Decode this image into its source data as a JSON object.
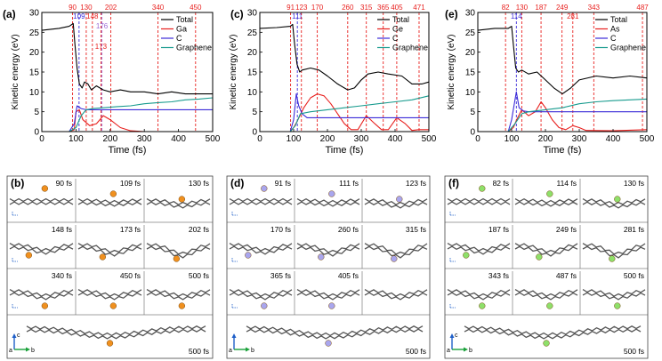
{
  "colors": {
    "total": "#000000",
    "atom": "#e8201e",
    "carbon": "#3b2bd8",
    "graphene": "#179b8e",
    "vline_red": "#e8201e",
    "vline_blue": "#3b2bd8",
    "vline_purple": "#9b6bd6",
    "ga_atom": "#f0901e",
    "ge_atom": "#a9a6ee",
    "as_atom": "#8ee06a",
    "lattice": "#555555",
    "axis_c": "#1e5fc8",
    "axis_b": "#1aa13a"
  },
  "chart_data": [
    {
      "type": "line",
      "panel_label": "(a)",
      "xlabel": "Time (fs)",
      "ylabel": "Kinetic energy (eV)",
      "xlim": [
        0,
        500
      ],
      "ylim": [
        0,
        30
      ],
      "xticks": [
        0,
        100,
        200,
        300,
        400,
        500
      ],
      "yticks": [
        0,
        5,
        10,
        15,
        20,
        25,
        30
      ],
      "legend_position": "top-right",
      "series": [
        {
          "name": "Total",
          "color_key": "total",
          "x": [
            0,
            50,
            80,
            92,
            97,
            103,
            110,
            118,
            125,
            135,
            145,
            160,
            180,
            200,
            230,
            260,
            300,
            340,
            380,
            420,
            460,
            500
          ],
          "y": [
            25.5,
            26,
            26.5,
            27.2,
            22,
            16,
            12,
            11,
            12.5,
            12,
            10.5,
            11.5,
            10.5,
            10,
            10.5,
            10,
            10,
            9.5,
            10,
            9.5,
            9.5,
            9.5
          ]
        },
        {
          "name": "Ga",
          "color_key": "atom",
          "x": [
            0,
            80,
            95,
            100,
            110,
            120,
            140,
            160,
            180,
            200,
            230,
            260,
            300,
            500
          ],
          "y": [
            0,
            0,
            0.5,
            5,
            5.5,
            3,
            1.5,
            2,
            4,
            3,
            1,
            0.2,
            0,
            0
          ]
        },
        {
          "name": "C",
          "color_key": "carbon",
          "x": [
            0,
            80,
            95,
            103,
            115,
            130,
            150,
            500
          ],
          "y": [
            0,
            0,
            2,
            6.5,
            5.8,
            5.5,
            5.5,
            5.5
          ]
        },
        {
          "name": "Graphene",
          "color_key": "graphene",
          "x": [
            0,
            80,
            100,
            115,
            130,
            150,
            180,
            220,
            260,
            300,
            340,
            380,
            420,
            460,
            500
          ],
          "y": [
            0,
            0,
            1,
            4,
            5.5,
            5.8,
            6,
            6.3,
            6.5,
            7,
            7.3,
            7.5,
            8,
            8.2,
            8.5
          ]
        }
      ],
      "markers": [
        {
          "t": 90,
          "label": "90",
          "color_key": "vline_red",
          "row": 0
        },
        {
          "t": 109,
          "label": "109",
          "color_key": "vline_blue",
          "row": 1
        },
        {
          "t": 130,
          "label": "130",
          "color_key": "vline_red",
          "row": 0
        },
        {
          "t": 148,
          "label": "148",
          "color_key": "vline_red",
          "row": 1
        },
        {
          "t": 173,
          "label": "173",
          "color_key": "vline_red",
          "row": 3
        },
        {
          "t": 176,
          "label": "176",
          "color_key": "vline_purple",
          "row": 2
        },
        {
          "t": 202,
          "label": "202",
          "color_key": "vline_red",
          "row": 0
        },
        {
          "t": 340,
          "label": "340",
          "color_key": "vline_red",
          "row": 0
        },
        {
          "t": 450,
          "label": "450",
          "color_key": "vline_red",
          "row": 0
        }
      ]
    },
    {
      "type": "line",
      "panel_label": "(c)",
      "xlabel": "Time (fs)",
      "ylabel": "Kinetic energy (eV)",
      "xlim": [
        0,
        500
      ],
      "ylim": [
        0,
        30
      ],
      "xticks": [
        0,
        100,
        200,
        300,
        400,
        500
      ],
      "yticks": [
        0,
        5,
        10,
        15,
        20,
        25,
        30
      ],
      "legend_position": "top-right",
      "series": [
        {
          "name": "Total",
          "color_key": "total",
          "x": [
            0,
            50,
            90,
            97,
            103,
            110,
            118,
            125,
            150,
            175,
            200,
            230,
            260,
            280,
            300,
            320,
            350,
            380,
            420,
            450,
            480,
            500
          ],
          "y": [
            26,
            26.2,
            26.5,
            27,
            22,
            17,
            15,
            15.5,
            16,
            15.5,
            14,
            12,
            10.5,
            11,
            13,
            14.5,
            15,
            14.5,
            14,
            12,
            12,
            12.5
          ]
        },
        {
          "name": "Ge",
          "color_key": "atom",
          "x": [
            0,
            90,
            100,
            110,
            130,
            150,
            170,
            190,
            210,
            230,
            250,
            270,
            290,
            315,
            340,
            360,
            380,
            405,
            430,
            450,
            470,
            500
          ],
          "y": [
            0,
            0,
            1,
            2.5,
            6,
            8.5,
            9.5,
            9,
            7,
            4.5,
            2,
            0.5,
            0.5,
            4,
            2,
            0.5,
            0.5,
            3.5,
            2,
            0.3,
            0.5,
            0.5
          ]
        },
        {
          "name": "C",
          "color_key": "carbon",
          "x": [
            0,
            90,
            100,
            108,
            115,
            125,
            140,
            500
          ],
          "y": [
            0,
            0,
            3,
            9.5,
            6.5,
            4.5,
            3.5,
            3.5
          ]
        },
        {
          "name": "Graphene",
          "color_key": "graphene",
          "x": [
            0,
            90,
            105,
            120,
            150,
            200,
            250,
            300,
            350,
            400,
            450,
            500
          ],
          "y": [
            0,
            0,
            1.5,
            4.5,
            5,
            5.5,
            6,
            6.5,
            7,
            7.5,
            8,
            9
          ]
        }
      ],
      "markers": [
        {
          "t": 91,
          "label": "91",
          "color_key": "vline_red",
          "row": 0
        },
        {
          "t": 111,
          "label": "111",
          "color_key": "vline_blue",
          "row": 1
        },
        {
          "t": 123,
          "label": "123",
          "color_key": "vline_red",
          "row": 0
        },
        {
          "t": 170,
          "label": "170",
          "color_key": "vline_red",
          "row": 0
        },
        {
          "t": 260,
          "label": "260",
          "color_key": "vline_red",
          "row": 0
        },
        {
          "t": 315,
          "label": "315",
          "color_key": "vline_red",
          "row": 0
        },
        {
          "t": 365,
          "label": "365",
          "color_key": "vline_red",
          "row": 0
        },
        {
          "t": 405,
          "label": "405",
          "color_key": "vline_red",
          "row": 0
        },
        {
          "t": 471,
          "label": "471",
          "color_key": "vline_red",
          "row": 0
        }
      ]
    },
    {
      "type": "line",
      "panel_label": "(e)",
      "xlabel": "Time (fs)",
      "ylabel": "Kinetic energy (eV)",
      "xlim": [
        0,
        500
      ],
      "ylim": [
        0,
        30
      ],
      "xticks": [
        0,
        100,
        200,
        300,
        400,
        500
      ],
      "yticks": [
        0,
        5,
        10,
        15,
        20,
        25,
        30
      ],
      "legend_position": "top-right",
      "series": [
        {
          "name": "Total",
          "color_key": "total",
          "x": [
            0,
            50,
            90,
            100,
            105,
            112,
            120,
            130,
            150,
            175,
            200,
            225,
            250,
            275,
            300,
            350,
            400,
            450,
            500
          ],
          "y": [
            25.5,
            26,
            26,
            26.5,
            22,
            16,
            15,
            15.5,
            14.5,
            15,
            13,
            11,
            9.5,
            11,
            13,
            14,
            13.5,
            14,
            13.5
          ]
        },
        {
          "name": "As",
          "color_key": "atom",
          "x": [
            0,
            90,
            105,
            115,
            130,
            150,
            170,
            187,
            200,
            220,
            240,
            260,
            281,
            300,
            320,
            400,
            500
          ],
          "y": [
            0,
            0,
            1,
            3,
            5.5,
            4,
            5,
            7.5,
            6,
            3,
            1,
            0.5,
            1.5,
            1,
            0.3,
            0.2,
            0.5
          ]
        },
        {
          "name": "C",
          "color_key": "carbon",
          "x": [
            0,
            90,
            100,
            114,
            122,
            135,
            150,
            500
          ],
          "y": [
            0,
            0,
            3,
            10,
            6,
            5.2,
            5,
            5
          ]
        },
        {
          "name": "Graphene",
          "color_key": "graphene",
          "x": [
            0,
            90,
            110,
            130,
            150,
            200,
            250,
            300,
            350,
            400,
            450,
            500
          ],
          "y": [
            0,
            0,
            2,
            4.5,
            5,
            5.5,
            6,
            7,
            7.5,
            7.8,
            8,
            8.2
          ]
        }
      ],
      "markers": [
        {
          "t": 82,
          "label": "82",
          "color_key": "vline_red",
          "row": 0
        },
        {
          "t": 114,
          "label": "114",
          "color_key": "vline_blue",
          "row": 1
        },
        {
          "t": 130,
          "label": "130",
          "color_key": "vline_red",
          "row": 0
        },
        {
          "t": 187,
          "label": "187",
          "color_key": "vline_red",
          "row": 0
        },
        {
          "t": 249,
          "label": "249",
          "color_key": "vline_red",
          "row": 0
        },
        {
          "t": 281,
          "label": "281",
          "color_key": "vline_red",
          "row": 1
        },
        {
          "t": 343,
          "label": "343",
          "color_key": "vline_red",
          "row": 0
        },
        {
          "t": 487,
          "label": "487",
          "color_key": "vline_red",
          "row": 0
        }
      ]
    }
  ],
  "snapshot_panels": [
    {
      "panel_label": "(b)",
      "atom_color_key": "ga_atom",
      "rows": [
        [
          "90 fs",
          "109 fs",
          "130 fs"
        ],
        [
          "148 fs",
          "173 fs",
          "202 fs"
        ],
        [
          "340 fs",
          "450 fs",
          "500 fs"
        ]
      ],
      "wide_label": "500 fs",
      "axis_c_label": "c",
      "axis_a_label": "a",
      "axis_b_label": "b"
    },
    {
      "panel_label": "(d)",
      "atom_color_key": "ge_atom",
      "rows": [
        [
          "91 fs",
          "111 fs",
          "123 fs"
        ],
        [
          "170 fs",
          "260 fs",
          "315 fs"
        ],
        [
          "365 fs",
          "405 fs",
          ""
        ]
      ],
      "wide_label": "500 fs",
      "axis_c_label": "",
      "axis_a_label": "a",
      "axis_b_label": "b"
    },
    {
      "panel_label": "(f)",
      "atom_color_key": "as_atom",
      "rows": [
        [
          "82 fs",
          "114 fs",
          "130 fs"
        ],
        [
          "187 fs",
          "249 fs",
          "281 fs"
        ],
        [
          "343 fs",
          "487 fs",
          "500 fs"
        ]
      ],
      "wide_label": "500 fs",
      "axis_c_label": "c",
      "axis_a_label": "a",
      "axis_b_label": "b"
    }
  ]
}
